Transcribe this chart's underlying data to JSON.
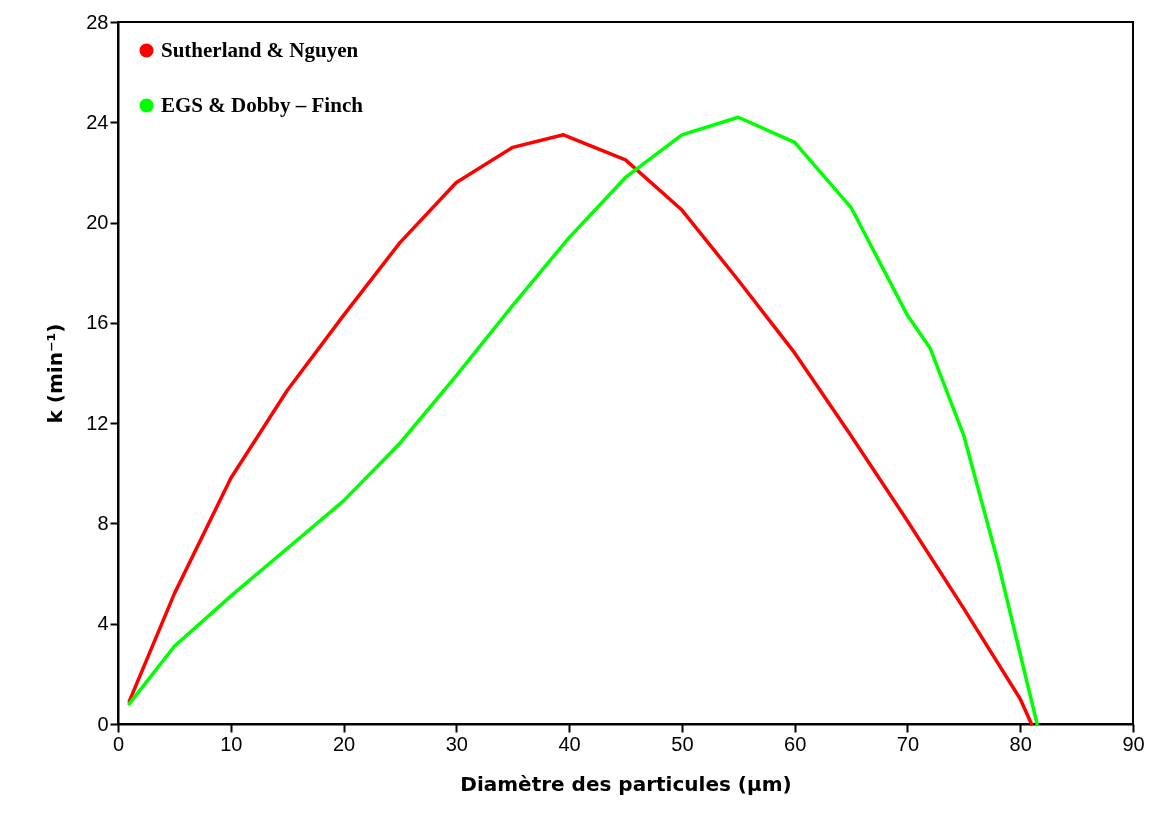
{
  "chart_data": {
    "type": "line",
    "xlabel": "Diamètre des particules (µm)",
    "ylabel": "k (min⁻¹)",
    "xlim": [
      0,
      90
    ],
    "xticks": [
      0,
      10,
      20,
      30,
      40,
      50,
      60,
      70,
      80,
      90
    ],
    "ylim": [
      0,
      28
    ],
    "yticks": [
      0,
      4,
      8,
      12,
      16,
      20,
      24,
      28
    ],
    "grid": false,
    "legend": "top left",
    "marker": "none",
    "line_style": "solid",
    "series": [
      {
        "name": "Sutherland & Nguyen",
        "color": "#ff0000",
        "x": [
          1,
          5,
          10,
          15,
          20,
          25,
          30,
          35,
          39.5,
          45,
          50,
          55,
          60,
          65,
          70,
          75,
          80,
          81
        ],
        "values": [
          0.9,
          5.2,
          9.8,
          13.3,
          16.3,
          19.2,
          21.6,
          23,
          23.5,
          22.5,
          20.5,
          17.7,
          14.8,
          11.5,
          8.1,
          4.6,
          1,
          0
        ]
      },
      {
        "name": "EGS & Dobby – Finch",
        "color": "#00ff00",
        "x": [
          1,
          5,
          10,
          15,
          20,
          25,
          30,
          35,
          40,
          45,
          50,
          55,
          60,
          65,
          70,
          72,
          75,
          78,
          81.5
        ],
        "values": [
          0.8,
          3.1,
          5.1,
          7,
          8.9,
          11.2,
          13.9,
          16.7,
          19.4,
          21.8,
          23.5,
          24.2,
          23.2,
          20.6,
          16.3,
          15,
          11.5,
          6.5,
          0
        ]
      }
    ]
  }
}
